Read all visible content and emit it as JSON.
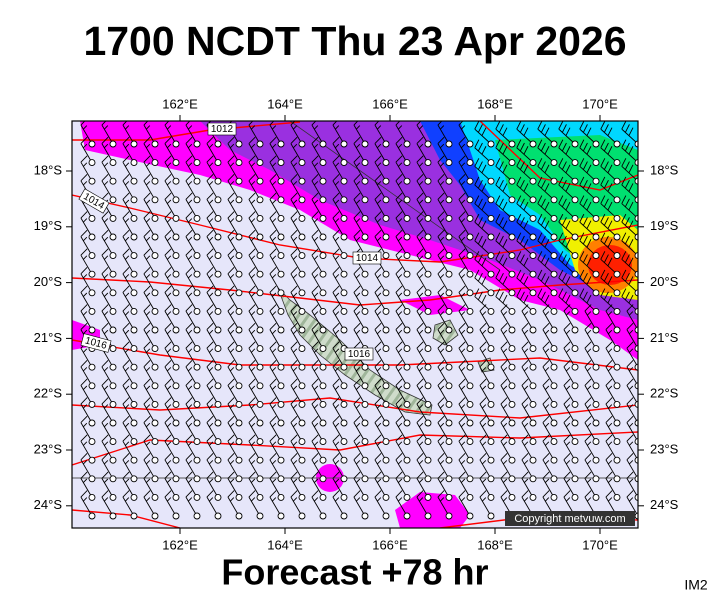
{
  "header": {
    "title": "1700 NCDT Thu 23 Apr 2026"
  },
  "map": {
    "lon_labels": [
      "162°E",
      "164°E",
      "166°E",
      "168°E",
      "170°E"
    ],
    "lat_labels": [
      "18°S",
      "19°S",
      "20°S",
      "21°S",
      "22°S",
      "23°S",
      "24°S"
    ],
    "isobar_labels": [
      "1012",
      "1014",
      "1014",
      "1016",
      "1016"
    ],
    "copyright": "Copyright metvuw.com"
  },
  "footer": {
    "forecast": "Forecast +78 hr",
    "tag": "IM2"
  }
}
